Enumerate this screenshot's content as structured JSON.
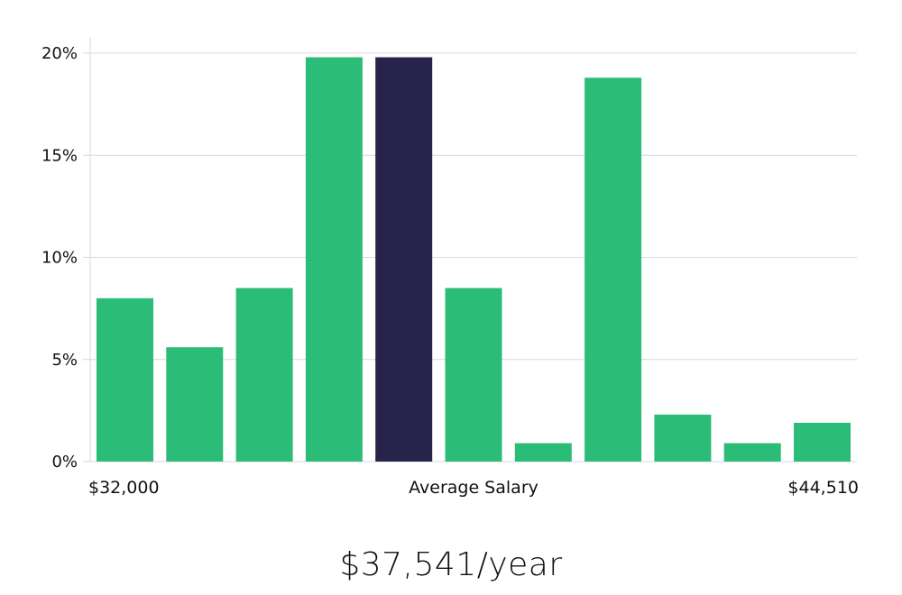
{
  "chart_data": {
    "type": "bar",
    "values": [
      8.0,
      5.6,
      8.5,
      19.8,
      19.8,
      8.5,
      0.9,
      18.8,
      2.3,
      0.9,
      1.9
    ],
    "highlight_index": 4,
    "ylim": [
      0,
      20
    ],
    "yticks": [
      0,
      5,
      10,
      15,
      20
    ],
    "ytick_labels": [
      "0%",
      "5%",
      "10%",
      "15%",
      "20%"
    ],
    "x_min_label": "$32,000",
    "x_center_label": "Average Salary",
    "x_max_label": "$44,510",
    "grid": true,
    "colors": {
      "bar": "#2bbd78",
      "highlight": "#27234a",
      "grid": "#d9d9de"
    }
  },
  "summary": {
    "average_salary": "$37,541/year"
  }
}
